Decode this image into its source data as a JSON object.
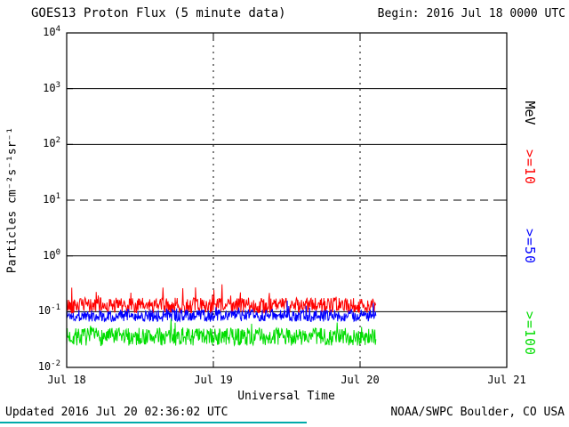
{
  "header": {
    "title": "GOES13 Proton Flux (5 minute data)",
    "begin": "Begin: 2016 Jul 18 0000 UTC"
  },
  "footer": {
    "updated": "Updated 2016 Jul 20 02:36:02 UTC",
    "credit": "NOAA/SWPC Boulder, CO USA",
    "accent_line_color": "#00AAAA"
  },
  "right_labels": {
    "unit": "MeV"
  },
  "chart_data": {
    "type": "line",
    "title": "GOES13 Proton Flux (5 minute data)",
    "xlabel": "Universal Time",
    "ylabel": "Particles cm⁻²s⁻¹sr⁻¹",
    "grid": "on",
    "x_axis": {
      "tick_labels": [
        "Jul 18",
        "Jul 19",
        "Jul 20",
        "Jul 21"
      ],
      "range_days": [
        0,
        3
      ],
      "vertical_gridlines_days": [
        1,
        2
      ]
    },
    "y_axis": {
      "scale": "log10",
      "range_exponents": [
        -2,
        4
      ],
      "tick_exponents": [
        4,
        3,
        2,
        1,
        0,
        -1,
        -2
      ],
      "dashed_threshold_exponent": 1
    },
    "data_start_day": 0,
    "data_end_day": 2.108,
    "cadence_minutes": 5,
    "series": [
      {
        "name": "Protons >=10 MeV",
        "label": ">=10",
        "color": "#FF0000",
        "baseline_flux": 0.13,
        "observed_range": [
          0.08,
          0.35
        ],
        "log10_mean": -0.89,
        "log10_jitter": 0.14,
        "spike_probability": 0.06,
        "spike_log10_max": 0.38,
        "seed": 42
      },
      {
        "name": "Protons >=50 MeV",
        "label": ">=50",
        "color": "#0000FF",
        "baseline_flux": 0.085,
        "observed_range": [
          0.05,
          0.15
        ],
        "log10_mean": -1.07,
        "log10_jitter": 0.11,
        "spike_probability": 0.04,
        "spike_log10_max": 0.2,
        "seed": 1337
      },
      {
        "name": "Protons >=100 MeV",
        "label": ">=100",
        "color": "#00DD00",
        "baseline_flux": 0.035,
        "observed_range": [
          0.02,
          0.08
        ],
        "log10_mean": -1.45,
        "log10_jitter": 0.16,
        "spike_probability": 0.05,
        "spike_log10_max": 0.25,
        "seed": 7
      }
    ]
  }
}
